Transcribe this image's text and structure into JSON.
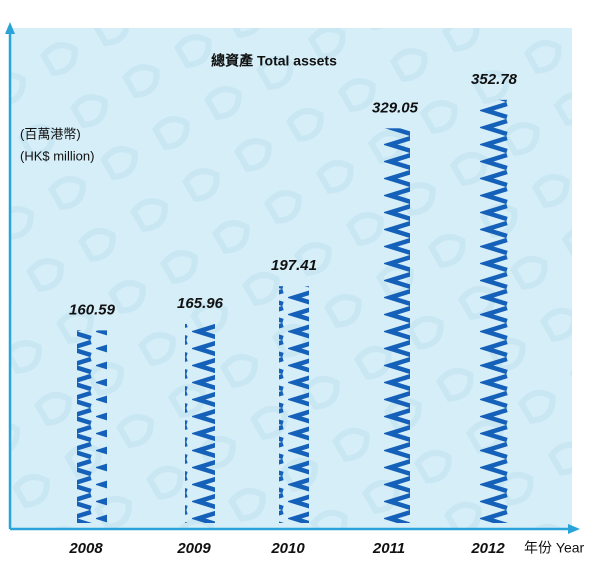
{
  "chart_data": {
    "type": "bar",
    "title": "總資產 Total assets",
    "y_label": [
      "(百萬港幣)",
      "(HK$ million)"
    ],
    "x_label": "年份 Year",
    "categories": [
      "2008",
      "2009",
      "2010",
      "2011",
      "2012"
    ],
    "values": [
      160.59,
      165.96,
      197.41,
      329.05,
      352.78
    ],
    "color": "#1560b8",
    "ylim": [
      0,
      411
    ]
  }
}
